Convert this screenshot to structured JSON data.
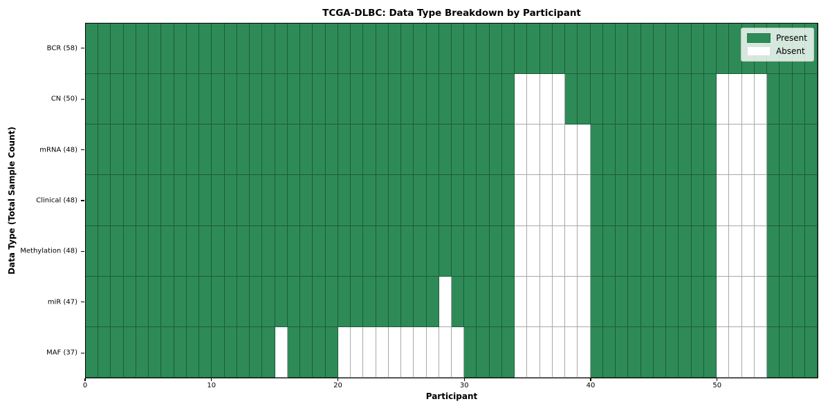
{
  "chart_data": {
    "type": "heatmap",
    "title": "TCGA-DLBC: Data Type Breakdown by Participant",
    "xlabel": "Participant",
    "ylabel": "Data Type (Total Sample Count)",
    "n_participants": 58,
    "x_range": [
      0,
      58
    ],
    "x_ticks": [
      0,
      10,
      20,
      30,
      40,
      50
    ],
    "grid": true,
    "legend_position": "upper right",
    "legend": [
      {
        "label": "Present",
        "color": "#2e8b57"
      },
      {
        "label": "Absent",
        "color": "#ffffff"
      }
    ],
    "colors": {
      "present": "#2e8b57",
      "absent": "#ffffff",
      "grid_line": "rgba(0,0,0,0.34)",
      "spine": "#000000",
      "legend_bg": "rgba(255,255,255,0.8)",
      "legend_border": "#cccccc"
    },
    "rows": [
      {
        "label": "BCR (58)",
        "data_type": "BCR",
        "total_samples": 58,
        "absent_participants": []
      },
      {
        "label": "CN (50)",
        "data_type": "CN",
        "total_samples": 50,
        "absent_participants": [
          34,
          35,
          36,
          37,
          50,
          51,
          52,
          53
        ]
      },
      {
        "label": "mRNA (48)",
        "data_type": "mRNA",
        "total_samples": 48,
        "absent_participants": [
          34,
          35,
          36,
          37,
          38,
          39,
          50,
          51,
          52,
          53
        ]
      },
      {
        "label": "Clinical (48)",
        "data_type": "Clinical",
        "total_samples": 48,
        "absent_participants": [
          34,
          35,
          36,
          37,
          38,
          39,
          50,
          51,
          52,
          53
        ]
      },
      {
        "label": "Methylation (48)",
        "data_type": "Methylation",
        "total_samples": 48,
        "absent_participants": [
          34,
          35,
          36,
          37,
          38,
          39,
          50,
          51,
          52,
          53
        ]
      },
      {
        "label": "miR (47)",
        "data_type": "miR",
        "total_samples": 47,
        "absent_participants": [
          28,
          34,
          35,
          36,
          37,
          38,
          39,
          50,
          51,
          52,
          53
        ]
      },
      {
        "label": "MAF (37)",
        "data_type": "MAF",
        "total_samples": 37,
        "absent_participants": [
          15,
          20,
          21,
          22,
          23,
          24,
          25,
          26,
          27,
          28,
          29,
          34,
          35,
          36,
          37,
          38,
          39,
          50,
          51,
          52,
          53
        ]
      }
    ]
  }
}
